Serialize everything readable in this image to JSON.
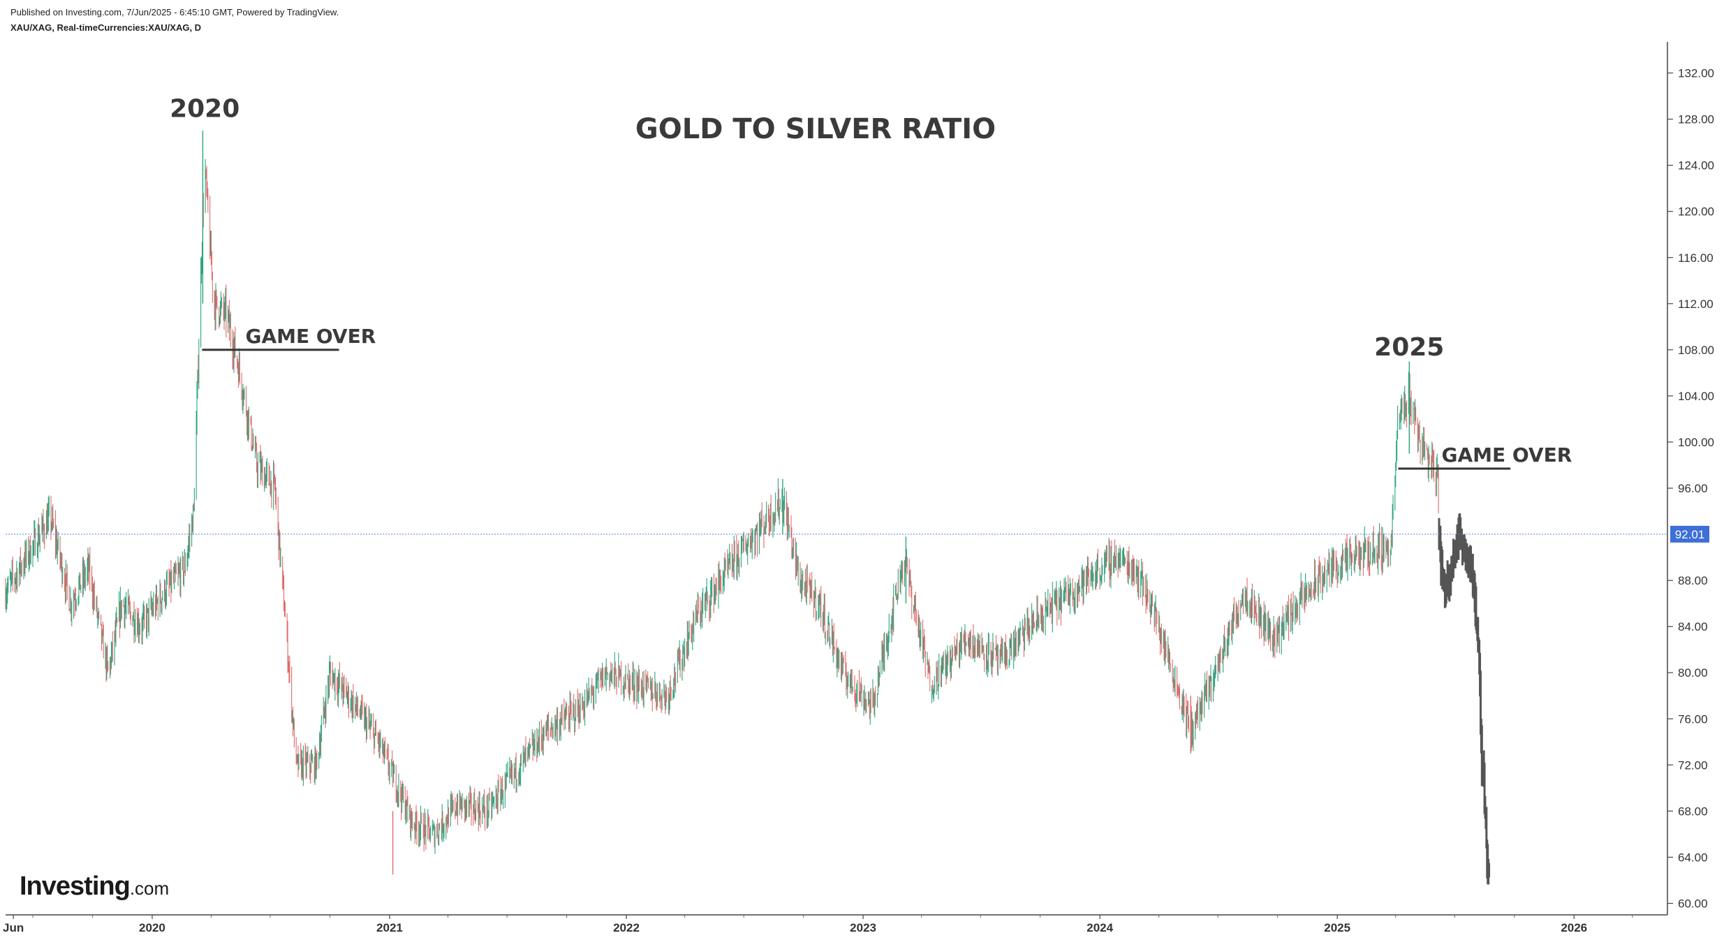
{
  "header": {
    "published": "Published on Investing.com, 7/Jun/2025 - 6:45:10 GMT, Powered by TradingView.",
    "symbol": "XAU/XAG, Real-timeCurrencies:XAU/XAG, D"
  },
  "logo": {
    "text": "Investing",
    "domain": ".com"
  },
  "chart_data": {
    "type": "candlestick",
    "title": "GOLD TO SILVER RATIO",
    "xlabel": "",
    "ylabel": "",
    "ylim": [
      59,
      135
    ],
    "xlim": [
      "2019-05-20",
      "2026-05-25"
    ],
    "y_ticks": [
      "60.00",
      "64.00",
      "68.00",
      "72.00",
      "76.00",
      "80.00",
      "84.00",
      "88.00",
      "96.00",
      "100.00",
      "104.00",
      "108.00",
      "112.00",
      "116.00",
      "120.00",
      "124.00",
      "128.00",
      "132.00"
    ],
    "x_ticks": [
      {
        "date": "2019-06-01",
        "label": "Jun"
      },
      {
        "date": "2020-01-01",
        "label": "2020"
      },
      {
        "date": "2021-01-01",
        "label": "2021"
      },
      {
        "date": "2022-01-01",
        "label": "2022"
      },
      {
        "date": "2023-01-01",
        "label": "2023"
      },
      {
        "date": "2024-01-01",
        "label": "2024"
      },
      {
        "date": "2025-01-01",
        "label": "2025"
      },
      {
        "date": "2026-01-01",
        "label": "2026"
      }
    ],
    "current_price": {
      "value": 92.01,
      "label": "92.01"
    },
    "up_color": "#2ba47f",
    "down_color": "#e06a6a",
    "projection_color": "#555555",
    "path_points": [
      [
        "2019-05-20",
        87.0
      ],
      [
        "2019-07-01",
        91.0
      ],
      [
        "2019-07-28",
        93.5
      ],
      [
        "2019-08-28",
        86.0
      ],
      [
        "2019-09-25",
        89.0
      ],
      [
        "2019-10-25",
        80.0
      ],
      [
        "2019-11-15",
        86.0
      ],
      [
        "2019-12-15",
        84.0
      ],
      [
        "2020-01-20",
        87.0
      ],
      [
        "2020-02-20",
        89.0
      ],
      [
        "2020-03-05",
        94.0
      ],
      [
        "2020-03-18",
        118.0
      ],
      [
        "2020-03-22",
        124.0
      ],
      [
        "2020-04-05",
        112.0
      ],
      [
        "2020-04-25",
        111.0
      ],
      [
        "2020-05-15",
        106.0
      ],
      [
        "2020-06-10",
        98.0
      ],
      [
        "2020-07-08",
        96.0
      ],
      [
        "2020-07-25",
        84.0
      ],
      [
        "2020-08-10",
        72.0
      ],
      [
        "2020-09-10",
        72.0
      ],
      [
        "2020-10-01",
        80.0
      ],
      [
        "2020-11-10",
        77.0
      ],
      [
        "2020-12-15",
        74.0
      ],
      [
        "2021-02-05",
        67.0
      ],
      [
        "2021-03-10",
        66.0
      ],
      [
        "2021-04-15",
        68.5
      ],
      [
        "2021-06-01",
        68.0
      ],
      [
        "2021-07-15",
        71.5
      ],
      [
        "2021-09-01",
        75.0
      ],
      [
        "2021-10-25",
        77.0
      ],
      [
        "2021-12-01",
        80.0
      ],
      [
        "2022-01-15",
        79.0
      ],
      [
        "2022-03-05",
        78.0
      ],
      [
        "2022-04-20",
        85.0
      ],
      [
        "2022-06-20",
        90.0
      ],
      [
        "2022-07-25",
        92.5
      ],
      [
        "2022-08-30",
        95.0
      ],
      [
        "2022-09-25",
        88.0
      ],
      [
        "2022-10-25",
        86.0
      ],
      [
        "2022-12-01",
        80.0
      ],
      [
        "2023-01-15",
        77.0
      ],
      [
        "2023-03-05",
        90.0
      ],
      [
        "2023-04-15",
        79.0
      ],
      [
        "2023-06-10",
        83.0
      ],
      [
        "2023-08-01",
        81.0
      ],
      [
        "2023-09-15",
        84.0
      ],
      [
        "2023-10-25",
        86.0
      ],
      [
        "2023-12-10",
        88.0
      ],
      [
        "2024-01-25",
        90.0
      ],
      [
        "2024-02-25",
        89.0
      ],
      [
        "2024-03-20",
        86.0
      ],
      [
        "2024-05-20",
        75.0
      ],
      [
        "2024-06-20",
        79.0
      ],
      [
        "2024-08-10",
        87.0
      ],
      [
        "2024-09-25",
        83.0
      ],
      [
        "2024-11-01",
        86.0
      ],
      [
        "2024-12-20",
        89.0
      ],
      [
        "2025-02-20",
        90.5
      ],
      [
        "2025-03-25",
        91.0
      ],
      [
        "2025-04-05",
        102.0
      ],
      [
        "2025-04-22",
        104.0
      ],
      [
        "2025-05-10",
        100.0
      ],
      [
        "2025-06-05",
        97.0
      ],
      [
        "2025-06-07",
        92.01
      ]
    ],
    "projection_points": [
      [
        "2025-06-07",
        92.0
      ],
      [
        "2025-06-12",
        88.0
      ],
      [
        "2025-06-20",
        87.5
      ],
      [
        "2025-06-28",
        90.0
      ],
      [
        "2025-07-08",
        92.0
      ],
      [
        "2025-07-18",
        90.5
      ],
      [
        "2025-07-28",
        89.0
      ],
      [
        "2025-08-03",
        85.0
      ],
      [
        "2025-08-08",
        80.0
      ],
      [
        "2025-08-12",
        72.0
      ],
      [
        "2025-08-16",
        70.0
      ],
      [
        "2025-08-20",
        64.0
      ],
      [
        "2025-08-23",
        62.0
      ]
    ],
    "annotations": [
      {
        "text": "2020",
        "date": "2020-03-22",
        "y": 128.2
      },
      {
        "text": "2025",
        "date": "2025-04-22",
        "y": 107.5
      },
      {
        "text": "GAME OVER",
        "line_from": "2020-03-18",
        "line_to": "2020-10-15",
        "line_y": 108.0
      },
      {
        "text": "GAME OVER",
        "line_from": "2025-04-05",
        "line_to": "2025-09-25",
        "line_y": 97.7
      }
    ]
  }
}
